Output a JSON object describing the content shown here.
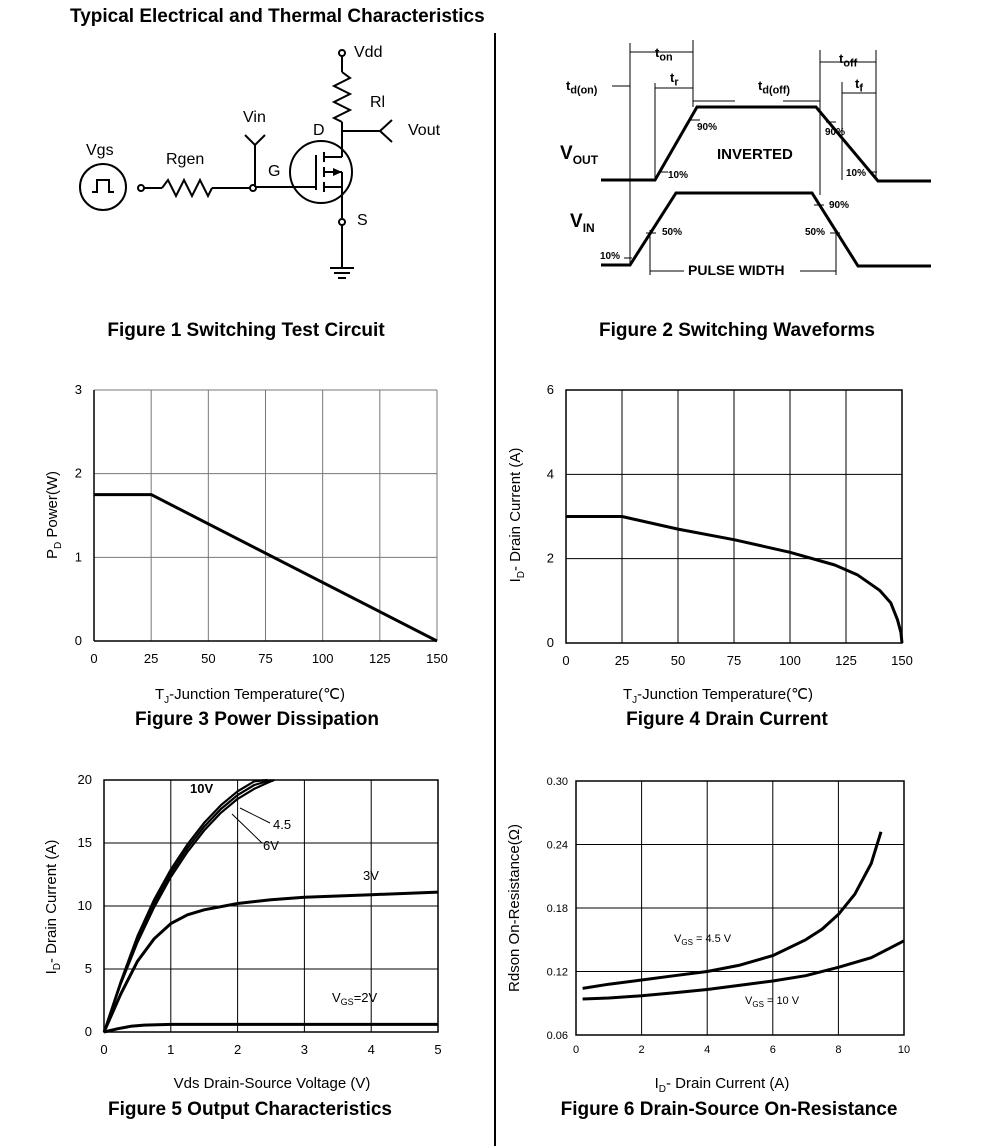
{
  "heading": "Typical Electrical and Thermal Characteristics",
  "figure1": {
    "caption": "Figure 1 Switching Test Circuit",
    "labels": {
      "vdd": "Vdd",
      "rl": "Rl",
      "vin": "Vin",
      "vout": "Vout",
      "d": "D",
      "g": "G",
      "s": "S",
      "vgs": "Vgs",
      "rgen": "Rgen"
    }
  },
  "figure2": {
    "caption": "Figure 2 Switching Waveforms",
    "labels": {
      "ton": "t",
      "ton_sub": "on",
      "tr": "t",
      "tr_sub": "r",
      "tdon": "t",
      "tdon_sub": "d(on)",
      "tdoff": "t",
      "tdoff_sub": "d(off)",
      "toff": "t",
      "toff_sub": "off",
      "tf": "t",
      "tf_sub": "f",
      "vout": "V",
      "vout_sub": "OUT",
      "vin": "V",
      "vin_sub": "IN",
      "inverted": "INVERTED",
      "pulse_width": "PULSE WIDTH",
      "p90a": "90%",
      "p10a": "10%",
      "p90b": "90%",
      "p10b": "10%",
      "p90c": "90%",
      "p50a": "50%",
      "p50b": "50%",
      "p10c": "10%"
    }
  },
  "chart_data": [
    {
      "type": "line",
      "id": "fig3",
      "caption": "Figure 3 Power Dissipation",
      "xlabel": "T",
      "xlabel_sub": "J",
      "xlabel_rest": "-Junction Temperature(℃)",
      "ylabel": "P",
      "ylabel_sub": "D",
      "ylabel_rest": "  Power(W)",
      "xlim": [
        0,
        150
      ],
      "ylim": [
        0,
        3
      ],
      "xticks": [
        0,
        25,
        50,
        75,
        100,
        125,
        150
      ],
      "yticks": [
        0,
        1,
        2,
        3
      ],
      "grid": true,
      "series": [
        {
          "x": [
            0,
            25,
            150
          ],
          "y": [
            1.75,
            1.75,
            0
          ]
        }
      ]
    },
    {
      "type": "line",
      "id": "fig4",
      "caption": "Figure 4 Drain Current",
      "xlabel": "T",
      "xlabel_sub": "J",
      "xlabel_rest": "-Junction Temperature(℃)",
      "ylabel": "I",
      "ylabel_sub": "D",
      "ylabel_rest": "- Drain Current (A)",
      "xlim": [
        0,
        150
      ],
      "ylim": [
        0,
        6
      ],
      "xticks": [
        0,
        25,
        50,
        75,
        100,
        125,
        150
      ],
      "yticks": [
        0,
        2,
        4,
        6
      ],
      "grid": true,
      "series": [
        {
          "x": [
            0,
            25,
            50,
            75,
            100,
            120,
            130,
            140,
            145,
            148,
            149.5,
            150
          ],
          "y": [
            3.0,
            3.0,
            2.7,
            2.45,
            2.15,
            1.85,
            1.62,
            1.25,
            0.95,
            0.55,
            0.25,
            0
          ]
        }
      ]
    },
    {
      "type": "line",
      "id": "fig5",
      "caption": "Figure 5 Output Characteristics",
      "xlabel": "Vds Drain-Source Voltage (V)",
      "ylabel": "I",
      "ylabel_sub": "D",
      "ylabel_rest": "- Drain Current (A)",
      "xlim": [
        0,
        5
      ],
      "ylim": [
        0,
        20
      ],
      "xticks": [
        0,
        1,
        2,
        3,
        4,
        5
      ],
      "yticks": [
        0,
        5,
        10,
        15,
        20
      ],
      "grid": true,
      "series": [
        {
          "name": "10V",
          "x": [
            0,
            0.25,
            0.5,
            0.75,
            1.0,
            1.25,
            1.5,
            1.75,
            2.0,
            2.25,
            2.45
          ],
          "y": [
            0,
            4.0,
            7.6,
            10.5,
            12.9,
            14.9,
            16.6,
            18.0,
            19.1,
            19.9,
            20
          ]
        },
        {
          "name": "6V",
          "x": [
            0,
            0.25,
            0.5,
            0.75,
            1.0,
            1.25,
            1.5,
            1.75,
            2.0,
            2.25,
            2.5
          ],
          "y": [
            0,
            3.9,
            7.3,
            10.2,
            12.6,
            14.6,
            16.3,
            17.7,
            18.8,
            19.6,
            20
          ]
        },
        {
          "name": "4.5",
          "x": [
            0,
            0.25,
            0.5,
            0.75,
            1.0,
            1.25,
            1.5,
            1.75,
            2.0,
            2.25,
            2.5,
            2.55
          ],
          "y": [
            0,
            3.8,
            7.1,
            9.9,
            12.3,
            14.3,
            16.0,
            17.4,
            18.5,
            19.3,
            19.9,
            20
          ]
        },
        {
          "name": "3V",
          "x": [
            0,
            0.25,
            0.5,
            0.75,
            1.0,
            1.25,
            1.5,
            2.0,
            2.5,
            3.0,
            4.0,
            5.0
          ],
          "y": [
            0,
            3.0,
            5.6,
            7.4,
            8.6,
            9.3,
            9.7,
            10.2,
            10.5,
            10.7,
            10.9,
            11.1
          ]
        },
        {
          "name": "V",
          "name_sub": "GS",
          "name_rest": "=2V",
          "x": [
            0,
            0.2,
            0.4,
            0.6,
            1.0,
            2.0,
            3.0,
            4.0,
            5.0
          ],
          "y": [
            0,
            0.25,
            0.45,
            0.55,
            0.6,
            0.6,
            0.6,
            0.6,
            0.6
          ]
        }
      ]
    },
    {
      "type": "line",
      "id": "fig6",
      "caption": "Figure 6 Drain-Source On-Resistance",
      "xlabel": "I",
      "xlabel_sub": "D",
      "xlabel_rest": "- Drain Current (A)",
      "ylabel": "Rdson On-Resistance(Ω)",
      "xlim": [
        0,
        10
      ],
      "ylim": [
        0.06,
        0.3
      ],
      "xticks": [
        0,
        2,
        4,
        6,
        8,
        10
      ],
      "yticks": [
        "0.06",
        "0.12",
        "0.18",
        "0.24",
        "0.30"
      ],
      "yticks_values": [
        0.06,
        0.12,
        0.18,
        0.24,
        0.3
      ],
      "grid": true,
      "series": [
        {
          "name": "V",
          "name_sub": "GS",
          "name_rest": " = 4.5 V",
          "x": [
            0.2,
            1,
            2,
            3,
            4,
            5,
            6,
            7,
            7.5,
            8,
            8.5,
            9,
            9.3
          ],
          "y": [
            0.104,
            0.108,
            0.112,
            0.116,
            0.12,
            0.126,
            0.135,
            0.15,
            0.16,
            0.174,
            0.193,
            0.222,
            0.252
          ]
        },
        {
          "name": "V",
          "name_sub": "GS",
          "name_rest": " = 10 V",
          "x": [
            0.2,
            1,
            2,
            3,
            4,
            5,
            6,
            7,
            8,
            9,
            10
          ],
          "y": [
            0.094,
            0.095,
            0.097,
            0.1,
            0.103,
            0.107,
            0.111,
            0.116,
            0.124,
            0.133,
            0.149
          ]
        }
      ]
    }
  ]
}
